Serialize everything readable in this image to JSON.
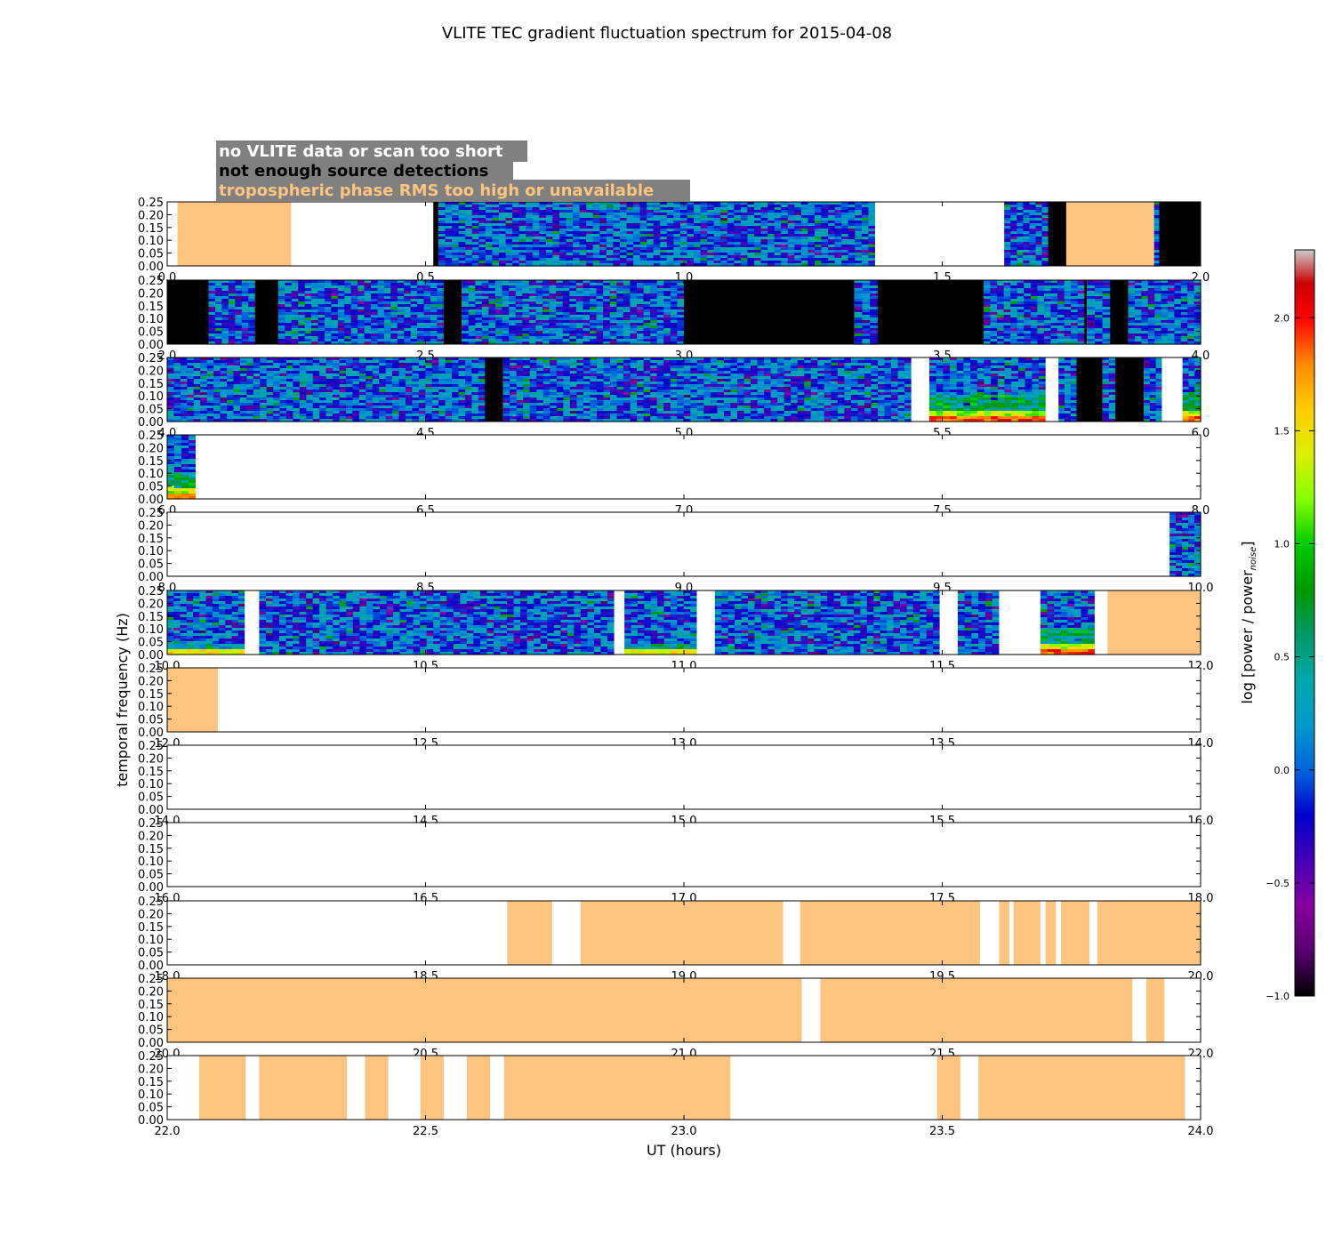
{
  "chart_data": {
    "type": "heatmap",
    "title": "VLITE TEC gradient fluctuation spectrum for 2015-04-08",
    "xlabel": "UT (hours)",
    "ylabel": "temporal frequency (Hz)",
    "ylim": [
      0,
      0.25
    ],
    "yticks": [
      "0.00",
      "0.05",
      "0.10",
      "0.15",
      "0.20",
      "0.25"
    ],
    "colorbar": {
      "label_main": "log [power / power",
      "label_sub": "noise",
      "label_end": "]",
      "range": [
        -1.0,
        2.3
      ],
      "ticks": [
        "−1.0",
        "−0.5",
        "0.0",
        "0.5",
        "1.0",
        "1.5",
        "2.0"
      ],
      "tick_values": [
        -1.0,
        -0.5,
        0.0,
        0.5,
        1.0,
        1.5,
        2.0
      ],
      "colormap": "spectral"
    },
    "legend": {
      "entries": [
        {
          "label": "no VLITE data or scan too short",
          "text_color": "#ffffff"
        },
        {
          "label": "not enough source detections",
          "text_color": "#000000"
        },
        {
          "label": "tropospheric phase RMS too high or unavailable",
          "text_color": "#fdc47f"
        }
      ],
      "background": "#808080"
    },
    "flag_colors": {
      "no_data": "#ffffff",
      "few_detections": "#000000",
      "tropo": "#fdc47f"
    },
    "panels": [
      {
        "x_range": [
          0,
          2
        ],
        "xticks": [
          "0.0",
          "0.5",
          "1.0",
          "1.5",
          "2.0"
        ],
        "segments": [
          [
            0.0,
            0.02,
            "white"
          ],
          [
            0.02,
            0.24,
            "tropo"
          ],
          [
            0.24,
            0.515,
            "white"
          ],
          [
            0.515,
            0.525,
            "black"
          ],
          [
            0.525,
            1.37,
            "spec"
          ],
          [
            1.37,
            1.62,
            "white"
          ],
          [
            1.62,
            1.705,
            "spec"
          ],
          [
            1.705,
            1.74,
            "black"
          ],
          [
            1.74,
            1.91,
            "tropo"
          ],
          [
            1.91,
            1.92,
            "spec"
          ],
          [
            1.92,
            2.0,
            "black"
          ]
        ]
      },
      {
        "x_range": [
          2,
          4
        ],
        "xticks": [
          "2.0",
          "2.5",
          "3.0",
          "3.5",
          "4.0"
        ],
        "segments": [
          [
            2.0,
            2.08,
            "black"
          ],
          [
            2.08,
            2.17,
            "spec"
          ],
          [
            2.17,
            2.215,
            "black"
          ],
          [
            2.215,
            2.535,
            "spec"
          ],
          [
            2.535,
            2.57,
            "black"
          ],
          [
            2.57,
            3.0,
            "spec"
          ],
          [
            3.0,
            3.33,
            "black"
          ],
          [
            3.33,
            3.375,
            "spec"
          ],
          [
            3.375,
            3.58,
            "black"
          ],
          [
            3.58,
            3.775,
            "spec"
          ],
          [
            3.775,
            3.78,
            "black"
          ],
          [
            3.78,
            3.825,
            "spec"
          ],
          [
            3.825,
            3.86,
            "black"
          ],
          [
            3.86,
            4.0,
            "spec"
          ]
        ]
      },
      {
        "x_range": [
          4,
          6
        ],
        "xticks": [
          "4.0",
          "4.5",
          "5.0",
          "5.5",
          "6.0"
        ],
        "segments": [
          [
            4.0,
            4.615,
            "spec"
          ],
          [
            4.615,
            4.65,
            "black"
          ],
          [
            4.65,
            5.44,
            "spec"
          ],
          [
            5.44,
            5.475,
            "white"
          ],
          [
            5.475,
            5.7,
            "spec",
            "hot"
          ],
          [
            5.7,
            5.725,
            "white"
          ],
          [
            5.725,
            5.76,
            "spec"
          ],
          [
            5.76,
            5.81,
            "black"
          ],
          [
            5.81,
            5.835,
            "spec"
          ],
          [
            5.835,
            5.89,
            "black"
          ],
          [
            5.89,
            5.925,
            "spec"
          ],
          [
            5.925,
            5.965,
            "white"
          ],
          [
            5.965,
            6.0,
            "spec",
            "hot"
          ]
        ]
      },
      {
        "x_range": [
          6,
          8
        ],
        "xticks": [
          "6.0",
          "6.5",
          "7.0",
          "7.5",
          "8.0"
        ],
        "segments": [
          [
            6.0,
            6.055,
            "spec",
            "hot"
          ],
          [
            6.055,
            8.0,
            "white"
          ]
        ]
      },
      {
        "x_range": [
          8,
          10
        ],
        "xticks": [
          "8.0",
          "8.5",
          "9.0",
          "9.5",
          "10.0"
        ],
        "segments": [
          [
            8.0,
            9.94,
            "white"
          ],
          [
            9.94,
            10.0,
            "spec"
          ]
        ]
      },
      {
        "x_range": [
          10,
          12
        ],
        "xticks": [
          "10.0",
          "10.5",
          "11.0",
          "11.5",
          "12.0"
        ],
        "segments": [
          [
            10.0,
            10.15,
            "spec",
            "warm"
          ],
          [
            10.15,
            10.178,
            "white"
          ],
          [
            10.178,
            10.865,
            "spec"
          ],
          [
            10.865,
            10.885,
            "white"
          ],
          [
            10.885,
            11.025,
            "spec",
            "warm"
          ],
          [
            11.025,
            11.06,
            "white"
          ],
          [
            11.06,
            11.495,
            "spec"
          ],
          [
            11.495,
            11.53,
            "white"
          ],
          [
            11.53,
            11.61,
            "spec"
          ],
          [
            11.61,
            11.69,
            "white"
          ],
          [
            11.69,
            11.795,
            "spec",
            "hot"
          ],
          [
            11.795,
            11.82,
            "white"
          ],
          [
            11.82,
            12.0,
            "tropo"
          ]
        ]
      },
      {
        "x_range": [
          12,
          14
        ],
        "xticks": [
          "12.0",
          "12.5",
          "13.0",
          "13.5",
          "14.0"
        ],
        "segments": [
          [
            12.0,
            12.098,
            "tropo"
          ],
          [
            12.098,
            14.0,
            "white"
          ]
        ]
      },
      {
        "x_range": [
          14,
          16
        ],
        "xticks": [
          "14.0",
          "14.5",
          "15.0",
          "15.5",
          "16.0"
        ],
        "segments": []
      },
      {
        "x_range": [
          16,
          18
        ],
        "xticks": [
          "16.0",
          "16.5",
          "17.0",
          "17.5",
          "18.0"
        ],
        "segments": []
      },
      {
        "x_range": [
          18,
          20
        ],
        "xticks": [
          "18.0",
          "18.5",
          "19.0",
          "19.5",
          "20.0"
        ],
        "segments": [
          [
            18.658,
            18.745,
            "tropo"
          ],
          [
            18.8,
            19.192,
            "tropo"
          ],
          [
            19.225,
            19.573,
            "tropo"
          ],
          [
            19.61,
            19.63,
            "tropo"
          ],
          [
            19.638,
            19.69,
            "tropo"
          ],
          [
            19.7,
            19.72,
            "tropo"
          ],
          [
            19.73,
            19.785,
            "tropo"
          ],
          [
            19.8,
            20.0,
            "tropo"
          ]
        ]
      },
      {
        "x_range": [
          20,
          22
        ],
        "xticks": [
          "20.0",
          "20.5",
          "21.0",
          "21.5",
          "22.0"
        ],
        "segments": [
          [
            20.0,
            21.228,
            "tropo"
          ],
          [
            21.264,
            21.868,
            "tropo"
          ],
          [
            21.895,
            21.93,
            "tropo"
          ]
        ]
      },
      {
        "x_range": [
          22,
          24
        ],
        "xticks": [
          "22.0",
          "22.5",
          "23.0",
          "23.5",
          "24.0"
        ],
        "segments": [
          [
            22.062,
            22.152,
            "tropo"
          ],
          [
            22.178,
            22.348,
            "tropo"
          ],
          [
            22.383,
            22.428,
            "tropo"
          ],
          [
            22.49,
            22.535,
            "tropo"
          ],
          [
            22.58,
            22.625,
            "tropo"
          ],
          [
            22.652,
            23.09,
            "tropo"
          ],
          [
            23.49,
            23.535,
            "tropo"
          ],
          [
            23.57,
            23.97,
            "tropo"
          ]
        ]
      }
    ]
  }
}
